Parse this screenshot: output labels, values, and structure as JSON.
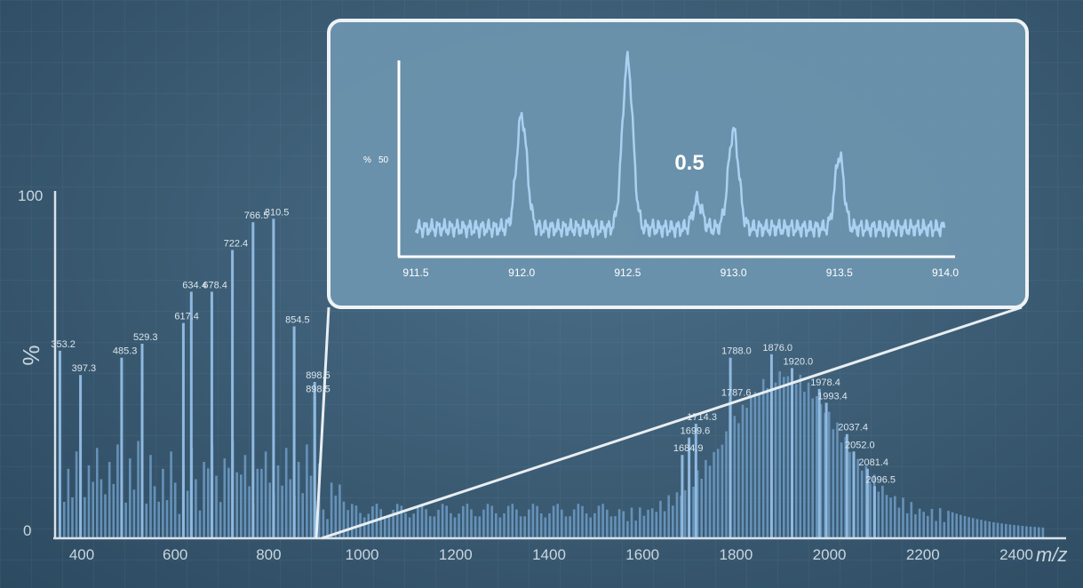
{
  "chart_data": [
    {
      "type": "bar",
      "xlabel": "m/z",
      "ylabel": "%",
      "xlim": [
        350,
        2520
      ],
      "ylim": [
        0,
        100
      ],
      "x_ticks": [
        "400",
        "600",
        "800",
        "1000",
        "1200",
        "1400",
        "1600",
        "1800",
        "2000",
        "2200",
        "2400"
      ],
      "y_ticks": [
        "0",
        "100"
      ],
      "grid": true,
      "peak_labels": [
        {
          "text": "353.2",
          "x": 353.2,
          "y": 54
        },
        {
          "text": "397.3",
          "x": 397.3,
          "y": 47
        },
        {
          "text": "485.3",
          "x": 485.3,
          "y": 52
        },
        {
          "text": "529.3",
          "x": 529.3,
          "y": 56
        },
        {
          "text": "617.4",
          "x": 617.4,
          "y": 62
        },
        {
          "text": "634.4",
          "x": 634.4,
          "y": 71
        },
        {
          "text": "678.4",
          "x": 678.4,
          "y": 71
        },
        {
          "text": "722.4",
          "x": 722.4,
          "y": 83
        },
        {
          "text": "766.5",
          "x": 766.5,
          "y": 91
        },
        {
          "text": "810.5",
          "x": 810.5,
          "y": 92
        },
        {
          "text": "854.5",
          "x": 854.5,
          "y": 61
        },
        {
          "text": "898.5",
          "x": 898.5,
          "y": 45
        },
        {
          "text": "898.5",
          "x": 898.5,
          "y": 41
        },
        {
          "text": "1684.9",
          "x": 1684.9,
          "y": 24
        },
        {
          "text": "1699.6",
          "x": 1699.6,
          "y": 29
        },
        {
          "text": "1714.3",
          "x": 1714.3,
          "y": 33
        },
        {
          "text": "1787.6",
          "x": 1787.6,
          "y": 40
        },
        {
          "text": "1788.0",
          "x": 1788.0,
          "y": 52
        },
        {
          "text": "1876.0",
          "x": 1876.0,
          "y": 53
        },
        {
          "text": "1920.0",
          "x": 1920.0,
          "y": 49
        },
        {
          "text": "1978.4",
          "x": 1978.4,
          "y": 43
        },
        {
          "text": "1993.4",
          "x": 1993.4,
          "y": 39
        },
        {
          "text": "2037.4",
          "x": 2037.4,
          "y": 30
        },
        {
          "text": "2052.0",
          "x": 2052.0,
          "y": 25
        },
        {
          "text": "2081.4",
          "x": 2081.4,
          "y": 20
        },
        {
          "text": "2096.5",
          "x": 2096.5,
          "y": 15
        }
      ]
    },
    {
      "type": "line",
      "ylabel": "%",
      "y_tick": "50",
      "xlim": [
        911.5,
        914.0
      ],
      "ylim": [
        0,
        100
      ],
      "x_ticks": [
        "911.5",
        "912.0",
        "912.5",
        "913.0",
        "913.5",
        "914.0"
      ],
      "annotation": "0.5",
      "peaks": [
        {
          "x": 912.0,
          "y": 70
        },
        {
          "x": 912.5,
          "y": 100
        },
        {
          "x": 912.83,
          "y": 25
        },
        {
          "x": 913.0,
          "y": 62
        },
        {
          "x": 913.5,
          "y": 49
        }
      ],
      "baseline": 10
    }
  ]
}
